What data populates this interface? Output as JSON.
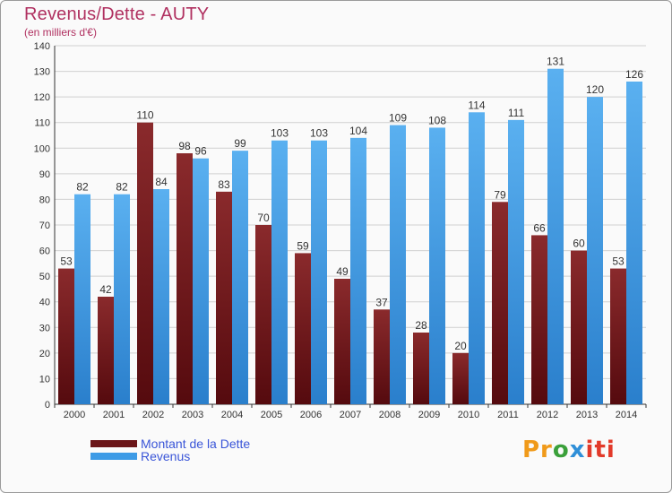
{
  "header": {
    "title": "Revenus/Dette - AUTY",
    "subtitle": "(en milliers d'€)"
  },
  "colors": {
    "dette": "#6b1518",
    "revenus": "#3d9be6",
    "grid": "#d0d0d0",
    "axis": "#333333"
  },
  "legend": {
    "dette_label": "Montant de la Dette",
    "revenus_label": "Revenus"
  },
  "logo": {
    "p1": "Pr",
    "p2": "o",
    "p3": "x",
    "p4": "iti"
  },
  "chart_data": {
    "type": "bar",
    "categories": [
      "2000",
      "2001",
      "2002",
      "2003",
      "2004",
      "2005",
      "2006",
      "2007",
      "2008",
      "2009",
      "2010",
      "2011",
      "2012",
      "2013",
      "2014"
    ],
    "series": [
      {
        "name": "Montant de la Dette",
        "values": [
          53,
          42,
          110,
          98,
          83,
          70,
          59,
          49,
          37,
          28,
          20,
          79,
          66,
          60,
          53
        ]
      },
      {
        "name": "Revenus",
        "values": [
          82,
          82,
          84,
          96,
          99,
          103,
          103,
          104,
          109,
          108,
          114,
          111,
          131,
          120,
          126
        ]
      }
    ],
    "title": "Revenus/Dette - AUTY",
    "ylabel": "(en milliers d'€)",
    "ylim": [
      0,
      140
    ],
    "yticks": [
      0,
      10,
      20,
      30,
      40,
      50,
      60,
      70,
      80,
      90,
      100,
      110,
      120,
      130,
      140
    ],
    "grid": true,
    "legend_position": "bottom-left"
  }
}
